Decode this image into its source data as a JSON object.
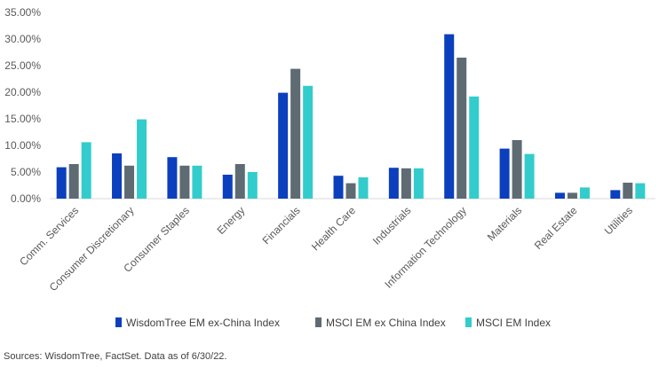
{
  "chart_data": {
    "type": "bar",
    "title": "",
    "xlabel": "",
    "ylabel": "",
    "ylim": [
      0,
      35
    ],
    "y_ticks": [
      "0.00%",
      "5.00%",
      "10.00%",
      "15.00%",
      "20.00%",
      "25.00%",
      "30.00%",
      "35.00%"
    ],
    "grid": false,
    "legend_position": "bottom",
    "categories": [
      "Comm. Services",
      "Consumer Discretionary",
      "Consumer Staples",
      "Energy",
      "Financials",
      "Health Care",
      "Industrials",
      "Information Technology",
      "Materials",
      "Real Estate",
      "Utilities"
    ],
    "series": [
      {
        "name": "WisdomTree EM ex-China Index",
        "color": "#0b3fbd",
        "values": [
          5.9,
          8.5,
          7.8,
          4.5,
          19.9,
          4.3,
          5.8,
          30.9,
          9.4,
          1.1,
          1.6
        ]
      },
      {
        "name": "MSCI EM ex China Index",
        "color": "#5f6b73",
        "values": [
          6.5,
          6.2,
          6.2,
          6.5,
          24.4,
          2.9,
          5.7,
          26.5,
          11.0,
          1.1,
          3.0
        ]
      },
      {
        "name": "MSCI EM Index",
        "color": "#33cccc",
        "values": [
          10.6,
          14.9,
          6.2,
          5.0,
          21.2,
          4.0,
          5.7,
          19.2,
          8.4,
          2.1,
          2.9
        ]
      }
    ]
  },
  "footnote": "Sources: WisdomTree, FactSet. Data as of 6/30/22."
}
